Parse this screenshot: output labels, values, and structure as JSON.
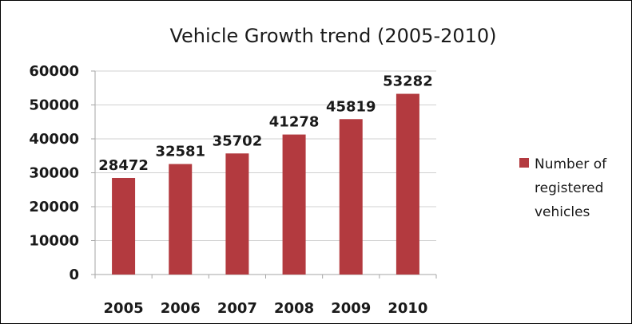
{
  "chart_data": {
    "type": "bar",
    "title": "Vehicle Growth trend (2005-2010)",
    "xlabel": "",
    "ylabel": "",
    "categories": [
      "2005",
      "2006",
      "2007",
      "2008",
      "2009",
      "2010"
    ],
    "series": [
      {
        "name": "Number of registered vehicles",
        "legend_lines": [
          "Number of",
          "registered",
          "vehicles"
        ],
        "values": [
          28472,
          32581,
          35702,
          41278,
          45819,
          53282
        ],
        "color": "#b33a3f"
      }
    ],
    "ylim": [
      0,
      60000
    ],
    "yticks": [
      "0",
      "10000",
      "20000",
      "30000",
      "40000",
      "50000",
      "60000"
    ],
    "grid": true,
    "gridColor": "#d0d0d0",
    "legend": "right"
  }
}
